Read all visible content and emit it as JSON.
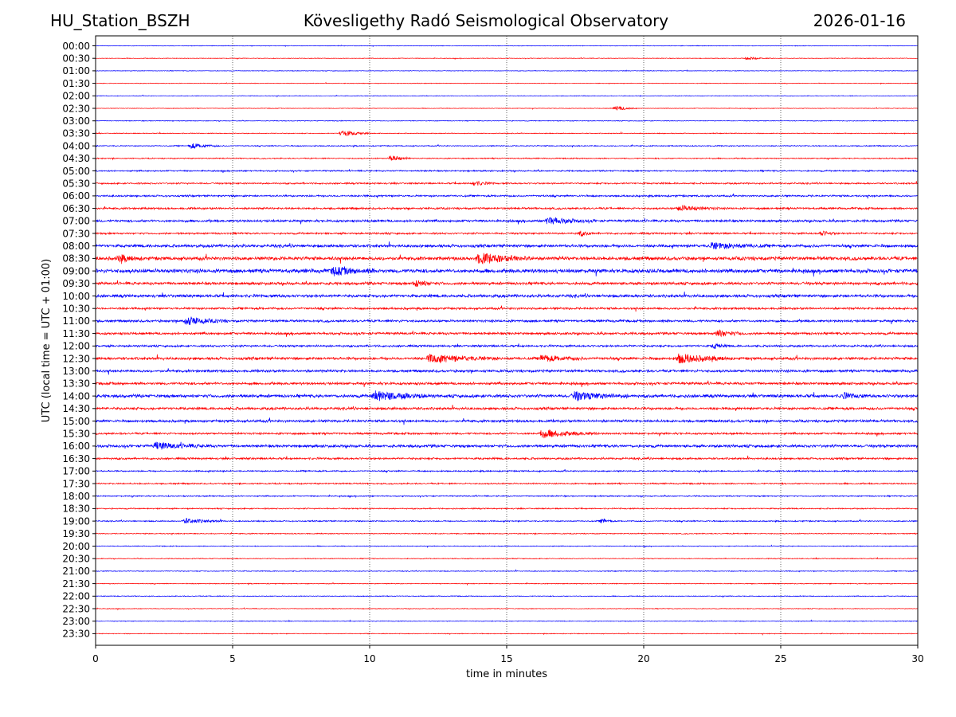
{
  "header": {
    "station": "HU_Station_BSZH",
    "title": "Kövesligethy Radó Seismological Observatory",
    "date": "2026-01-16"
  },
  "chart_data": {
    "type": "line",
    "subtype": "helicorder",
    "xlabel": "time in minutes",
    "ylabel": "UTC (local time = UTC + 01:00)",
    "xlim": [
      0,
      30
    ],
    "x_ticks": [
      0,
      5,
      10,
      15,
      20,
      25,
      30
    ],
    "vertical_gridlines_at": [
      5,
      10,
      15,
      20,
      25
    ],
    "grid_style": "dotted",
    "series_colors": [
      "#0000ff",
      "#ff0000"
    ],
    "row_labels": [
      "00:00",
      "00:30",
      "01:00",
      "01:30",
      "02:00",
      "02:30",
      "03:00",
      "03:30",
      "04:00",
      "04:30",
      "05:00",
      "05:30",
      "06:00",
      "06:30",
      "07:00",
      "07:30",
      "08:00",
      "08:30",
      "09:00",
      "09:30",
      "10:00",
      "10:30",
      "11:00",
      "11:30",
      "12:00",
      "12:30",
      "13:00",
      "13:30",
      "14:00",
      "14:30",
      "15:00",
      "15:30",
      "16:00",
      "16:30",
      "17:00",
      "17:30",
      "18:00",
      "18:30",
      "19:00",
      "19:30",
      "20:00",
      "20:30",
      "21:00",
      "21:30",
      "22:00",
      "22:30",
      "23:00",
      "23:30"
    ],
    "row_noise_level": [
      0.3,
      0.3,
      0.3,
      0.3,
      0.3,
      0.3,
      0.35,
      0.4,
      0.5,
      0.55,
      0.7,
      0.8,
      0.9,
      1.0,
      1.2,
      0.9,
      1.5,
      1.8,
      2.0,
      1.4,
      1.5,
      1.1,
      1.2,
      1.2,
      1.0,
      1.4,
      1.3,
      1.3,
      1.6,
      1.3,
      1.3,
      1.0,
      1.4,
      1.0,
      0.7,
      0.7,
      0.6,
      0.6,
      0.6,
      0.5,
      0.4,
      0.4,
      0.4,
      0.4,
      0.4,
      0.35,
      0.35,
      0.35
    ],
    "events": [
      {
        "row": 1,
        "minute": 23.8,
        "amplitude": 2,
        "duration": 0.8
      },
      {
        "row": 5,
        "minute": 19.0,
        "amplitude": 3,
        "duration": 0.8
      },
      {
        "row": 7,
        "minute": 9.0,
        "amplitude": 4,
        "duration": 1.0
      },
      {
        "row": 8,
        "minute": 3.5,
        "amplitude": 3.5,
        "duration": 1.0
      },
      {
        "row": 9,
        "minute": 10.8,
        "amplitude": 4,
        "duration": 0.7
      },
      {
        "row": 11,
        "minute": 13.8,
        "amplitude": 3,
        "duration": 0.8
      },
      {
        "row": 13,
        "minute": 21.3,
        "amplitude": 3.5,
        "duration": 1.5
      },
      {
        "row": 14,
        "minute": 16.5,
        "amplitude": 4,
        "duration": 1.8
      },
      {
        "row": 15,
        "minute": 17.7,
        "amplitude": 3,
        "duration": 0.5
      },
      {
        "row": 15,
        "minute": 26.5,
        "amplitude": 3,
        "duration": 0.6
      },
      {
        "row": 16,
        "minute": 22.5,
        "amplitude": 3.5,
        "duration": 2.0
      },
      {
        "row": 17,
        "minute": 14.0,
        "amplitude": 6,
        "duration": 2.0
      },
      {
        "row": 17,
        "minute": 0.9,
        "amplitude": 4,
        "duration": 0.8
      },
      {
        "row": 18,
        "minute": 8.7,
        "amplitude": 4.5,
        "duration": 1.5
      },
      {
        "row": 19,
        "minute": 11.7,
        "amplitude": 4,
        "duration": 0.8
      },
      {
        "row": 22,
        "minute": 3.3,
        "amplitude": 5,
        "duration": 1.5
      },
      {
        "row": 23,
        "minute": 22.7,
        "amplitude": 4,
        "duration": 1.0
      },
      {
        "row": 24,
        "minute": 22.6,
        "amplitude": 3,
        "duration": 0.5
      },
      {
        "row": 25,
        "minute": 12.2,
        "amplitude": 5,
        "duration": 2.5
      },
      {
        "row": 25,
        "minute": 16.3,
        "amplitude": 4,
        "duration": 1.5
      },
      {
        "row": 25,
        "minute": 21.3,
        "amplitude": 6,
        "duration": 1.8
      },
      {
        "row": 28,
        "minute": 10.2,
        "amplitude": 6,
        "duration": 2.0
      },
      {
        "row": 28,
        "minute": 17.5,
        "amplitude": 5,
        "duration": 2.0
      },
      {
        "row": 28,
        "minute": 27.3,
        "amplitude": 3,
        "duration": 0.8
      },
      {
        "row": 31,
        "minute": 16.3,
        "amplitude": 5,
        "duration": 2.0
      },
      {
        "row": 32,
        "minute": 2.2,
        "amplitude": 4,
        "duration": 2.0
      },
      {
        "row": 38,
        "minute": 3.3,
        "amplitude": 3,
        "duration": 1.5
      },
      {
        "row": 38,
        "minute": 18.5,
        "amplitude": 3,
        "duration": 0.4
      }
    ]
  }
}
